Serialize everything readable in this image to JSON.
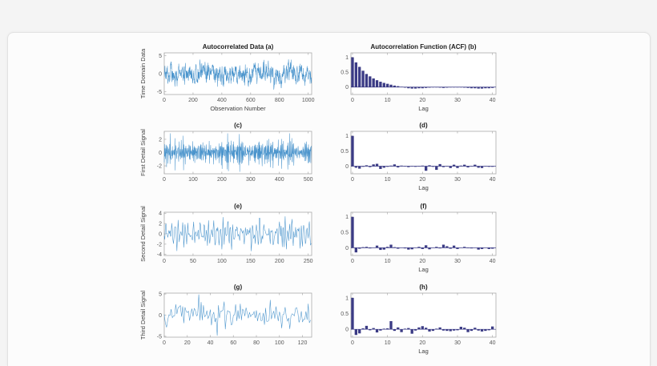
{
  "window": {
    "background": "#f4f4f4",
    "card_background": "#fcfcfc",
    "card_border": "#e2e2e2"
  },
  "figure": {
    "background": "#ffffff",
    "line_color": "#4a94cc",
    "bar_color": "#3b3b85",
    "axis_color": "#aaaaaa",
    "tick_label_color": "#575757",
    "axis_label_color": "#404040",
    "title_color": "#1c1c1c"
  },
  "chart_data": [
    {
      "id": "a",
      "type": "line",
      "title": "Autocorrelated Data (a)",
      "xlabel": "Observation Number",
      "ylabel": "Time Domain Data",
      "xlim": [
        0,
        1024
      ],
      "ylim": [
        -5.8,
        5.8
      ],
      "xticks": [
        0,
        200,
        400,
        600,
        800,
        1000
      ],
      "yticks": [
        5,
        0,
        -5
      ],
      "series_spec": {
        "kind": "ar1",
        "phi": 0.75,
        "sigma": 1.05,
        "n": 1024,
        "seed": 20,
        "clip": 4.9,
        "note": "AR(1) autocorrelated noise, ~1024 samples, range about -5..5"
      }
    },
    {
      "id": "b",
      "type": "bar",
      "title": "Autocorrelation Function (ACF) (b)",
      "xlabel": "Lag",
      "ylabel": "",
      "xlim": [
        -0.45,
        41
      ],
      "ylim": [
        -0.25,
        1.15
      ],
      "xticks": [
        0,
        10,
        20,
        30,
        40
      ],
      "yticks": [
        1,
        0.5,
        0
      ],
      "lag_note": "values correspond to lags 0-40",
      "values": [
        1.0,
        0.83,
        0.68,
        0.55,
        0.44,
        0.36,
        0.29,
        0.23,
        0.18,
        0.14,
        0.11,
        0.08,
        0.05,
        0.03,
        0.01,
        -0.02,
        -0.04,
        -0.05,
        -0.05,
        -0.04,
        -0.04,
        -0.03,
        -0.02,
        -0.01,
        -0.01,
        -0.02,
        -0.03,
        -0.02,
        -0.01,
        0.0,
        -0.01,
        -0.01,
        -0.02,
        -0.03,
        -0.04,
        -0.04,
        -0.05,
        -0.05,
        -0.04,
        -0.04,
        -0.03
      ]
    },
    {
      "id": "c",
      "type": "line",
      "title": "(c)",
      "xlabel": "",
      "ylabel": "First Detail Signal",
      "xlim": [
        0,
        512
      ],
      "ylim": [
        -3.2,
        3.2
      ],
      "xticks": [
        0,
        100,
        200,
        300,
        400,
        500
      ],
      "yticks": [
        2,
        0,
        -2
      ],
      "series_spec": {
        "kind": "diff1",
        "scale": 0.7,
        "n": 512,
        "seed": 77,
        "clip": 2.9,
        "note": "level-1 wavelet detail, white-noise-like, range about -2.8..2.5"
      }
    },
    {
      "id": "d",
      "type": "bar",
      "title": "(d)",
      "xlabel": "Lag",
      "ylabel": "",
      "xlim": [
        -0.45,
        41
      ],
      "ylim": [
        -0.25,
        1.15
      ],
      "xticks": [
        0,
        10,
        20,
        30,
        40
      ],
      "yticks": [
        1,
        0.5,
        0
      ],
      "lag_note": "values correspond to lags 0-40",
      "values": [
        1.0,
        -0.05,
        -0.08,
        -0.02,
        0.03,
        -0.03,
        0.06,
        0.08,
        -0.09,
        -0.05,
        -0.02,
        0.02,
        0.06,
        -0.04,
        0.02,
        -0.01,
        -0.03,
        0.01,
        -0.02,
        -0.01,
        0.02,
        -0.15,
        0.03,
        -0.02,
        -0.12,
        0.07,
        -0.03,
        0.01,
        -0.06,
        0.05,
        -0.06,
        0.02,
        0.05,
        -0.04,
        0.01,
        0.05,
        -0.05,
        -0.06,
        0.01,
        -0.02,
        -0.02
      ]
    },
    {
      "id": "e",
      "type": "line",
      "title": "(e)",
      "xlabel": "",
      "ylabel": "Second Detail Signal",
      "xlim": [
        0,
        256
      ],
      "ylim": [
        -4.2,
        4.2
      ],
      "xticks": [
        0,
        50,
        100,
        150,
        200,
        250
      ],
      "yticks": [
        4,
        2,
        0,
        -2,
        -4
      ],
      "series_spec": {
        "kind": "band2",
        "scale": 0.62,
        "n": 256,
        "seed": 11,
        "clip": 3.4,
        "note": "level-2 wavelet detail, range about -3..3"
      }
    },
    {
      "id": "f",
      "type": "bar",
      "title": "(f)",
      "xlabel": "Lag",
      "ylabel": "",
      "xlim": [
        -0.45,
        41
      ],
      "ylim": [
        -0.25,
        1.15
      ],
      "xticks": [
        0,
        10,
        20,
        30,
        40
      ],
      "yticks": [
        1,
        0.5,
        0
      ],
      "lag_note": "values correspond to lags 0-40",
      "values": [
        1.0,
        -0.15,
        -0.03,
        0.02,
        0.03,
        -0.02,
        0.01,
        0.07,
        -0.07,
        -0.06,
        0.03,
        0.1,
        0.02,
        -0.03,
        0.01,
        -0.02,
        -0.06,
        -0.05,
        0.01,
        0.03,
        -0.04,
        0.08,
        -0.05,
        0.01,
        0.03,
        -0.02,
        0.1,
        0.05,
        -0.03,
        0.07,
        -0.04,
        0.01,
        0.03,
        -0.01,
        -0.02,
        0.01,
        -0.06,
        -0.04,
        0.01,
        -0.04,
        -0.03
      ]
    },
    {
      "id": "g",
      "type": "line",
      "title": "(g)",
      "xlabel": "",
      "ylabel": "Third Detail Signal",
      "xlim": [
        0,
        128
      ],
      "ylim": [
        -5.2,
        5.2
      ],
      "xticks": [
        0,
        20,
        40,
        60,
        80,
        100,
        120
      ],
      "yticks": [
        5,
        0,
        -5
      ],
      "series_spec": {
        "kind": "noise",
        "scale": 1.55,
        "n": 128,
        "seed": 5,
        "clip": 4.9,
        "spikes": [
          [
            30,
            4.9
          ],
          [
            46,
            -4.85
          ],
          [
            52,
            3.2
          ],
          [
            92,
            3.6
          ]
        ],
        "note": "level-3 wavelet detail, 128 samples, spikes reaching +5 near x=30 and -5 near x=46"
      }
    },
    {
      "id": "h",
      "type": "bar",
      "title": "(h)",
      "xlabel": "Lag",
      "ylabel": "",
      "xlim": [
        -0.45,
        41
      ],
      "ylim": [
        -0.25,
        1.15
      ],
      "xticks": [
        0,
        10,
        20,
        30,
        40
      ],
      "yticks": [
        1,
        0.5,
        0
      ],
      "lag_note": "values correspond to lags 0-40",
      "values": [
        1.0,
        -0.18,
        -0.13,
        0.03,
        0.11,
        -0.03,
        0.04,
        -0.1,
        -0.04,
        0.02,
        0.03,
        0.26,
        -0.05,
        0.06,
        -0.09,
        0.02,
        0.04,
        -0.14,
        -0.04,
        0.06,
        0.1,
        0.05,
        -0.07,
        -0.05,
        0.02,
        0.06,
        -0.04,
        -0.05,
        -0.06,
        -0.04,
        -0.03,
        0.08,
        0.05,
        -0.09,
        -0.05,
        0.05,
        -0.04,
        -0.07,
        -0.05,
        -0.03,
        0.09
      ]
    }
  ]
}
